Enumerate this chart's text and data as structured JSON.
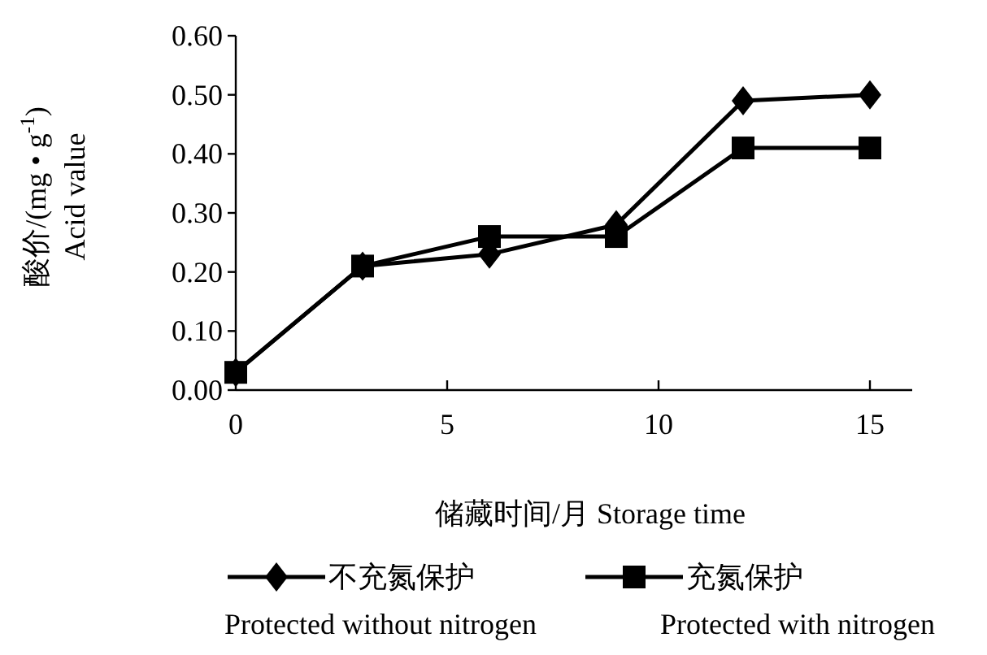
{
  "chart_data": {
    "type": "line",
    "xlabel": "储藏时间/月  Storage time",
    "ylabel": "酸价/(mg • g$^{-1}$)\nAcid value",
    "x": [
      0,
      3,
      6,
      9,
      12,
      15
    ],
    "series": [
      {
        "name": "不充氮保护\nProtected without nitrogen",
        "color": "#000000",
        "marker": "diamond",
        "values": [
          0.03,
          0.21,
          0.23,
          0.28,
          0.49,
          0.5
        ]
      },
      {
        "name": "充氮保护\nProtected with nitrogen",
        "color": "#000000",
        "marker": "square",
        "values": [
          0.03,
          0.21,
          0.26,
          0.26,
          0.41,
          0.41
        ]
      }
    ],
    "xlim": [
      0,
      16
    ],
    "xticks": [
      0,
      5,
      10,
      15
    ],
    "ylim": [
      0,
      0.6
    ],
    "yticks": [
      {
        "value": 0,
        "label": "0.00"
      },
      {
        "value": 0.1,
        "label": "0.10"
      },
      {
        "value": 0.2,
        "label": "0.20"
      },
      {
        "value": 0.3,
        "label": "0.30"
      },
      {
        "value": 0.4,
        "label": "0.40"
      },
      {
        "value": 0.5,
        "label": "0.50"
      },
      {
        "value": 0.6,
        "label": "0.60"
      }
    ],
    "grid": false,
    "legend": "bottom",
    "line_style": "solid"
  }
}
